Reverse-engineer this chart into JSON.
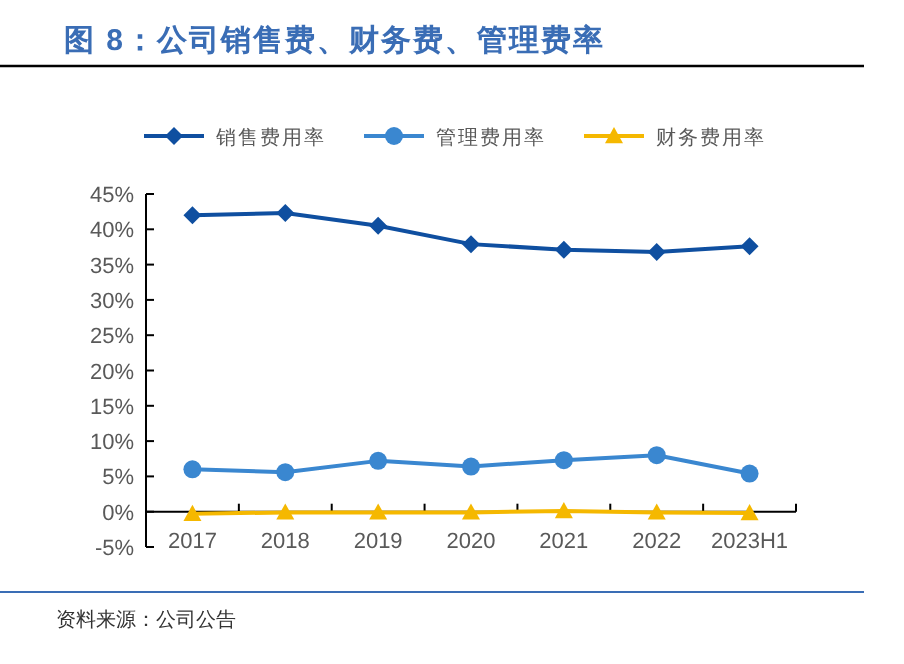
{
  "chart_data": {
    "type": "line",
    "title": "图 8：公司销售费、财务费、管理费率",
    "categories": [
      "2017",
      "2018",
      "2019",
      "2020",
      "2021",
      "2022",
      "2023H1"
    ],
    "series": [
      {
        "name": "销售费用率",
        "color": "#0f4fa0",
        "marker": "diamond",
        "values": [
          42.0,
          42.3,
          40.5,
          37.9,
          37.1,
          36.8,
          37.6
        ]
      },
      {
        "name": "管理费用率",
        "color": "#3a87d0",
        "marker": "circle",
        "values": [
          6.0,
          5.6,
          7.2,
          6.4,
          7.3,
          8.0,
          5.4
        ]
      },
      {
        "name": "财务费用率",
        "color": "#f5b800",
        "marker": "triangle",
        "values": [
          -0.3,
          -0.1,
          -0.1,
          -0.1,
          0.1,
          -0.1,
          -0.2
        ]
      }
    ],
    "ylim": [
      -5,
      45
    ],
    "yticks": [
      {
        "value": -5,
        "label": "-5%"
      },
      {
        "value": 0,
        "label": "0%"
      },
      {
        "value": 5,
        "label": "5%"
      },
      {
        "value": 10,
        "label": "10%"
      },
      {
        "value": 15,
        "label": "15%"
      },
      {
        "value": 20,
        "label": "20%"
      },
      {
        "value": 25,
        "label": "25%"
      },
      {
        "value": 30,
        "label": "30%"
      },
      {
        "value": 35,
        "label": "35%"
      },
      {
        "value": 40,
        "label": "40%"
      },
      {
        "value": 45,
        "label": "45%"
      }
    ],
    "grid": false,
    "legend": "top",
    "annotations": [
      "资料来源：公司公告"
    ]
  }
}
